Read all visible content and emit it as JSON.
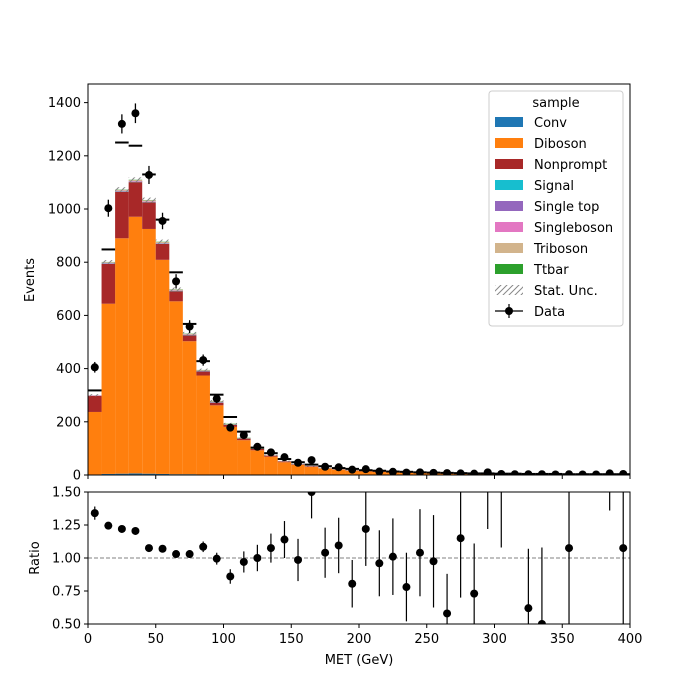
{
  "chart_data": {
    "type": "bar",
    "stacked": true,
    "x_edges": [
      0,
      10,
      20,
      30,
      40,
      50,
      60,
      70,
      80,
      90,
      100,
      110,
      120,
      130,
      140,
      150,
      160,
      170,
      180,
      190,
      200,
      210,
      220,
      230,
      240,
      250,
      260,
      270,
      280,
      290,
      300,
      310,
      320,
      330,
      340,
      350,
      360,
      370,
      380,
      390,
      400
    ],
    "xlabel": "MET (GeV)",
    "xlim": [
      0,
      400
    ],
    "xticks": [
      0,
      50,
      100,
      150,
      200,
      250,
      300,
      350,
      400
    ],
    "top": {
      "ylabel": "Events",
      "ylim": [
        0,
        1470
      ],
      "yticks": [
        0,
        200,
        400,
        600,
        800,
        1000,
        1200,
        1400
      ],
      "series": [
        {
          "name": "Conv",
          "color": "#1f77b4",
          "values": [
            2,
            4,
            5,
            6,
            5,
            4,
            3,
            3,
            2,
            2,
            1,
            1,
            1,
            1,
            0,
            0,
            0,
            0,
            0,
            0,
            0,
            0,
            0,
            0,
            0,
            0,
            0,
            0,
            0,
            0,
            0,
            0,
            0,
            0,
            0,
            0,
            0,
            0,
            0,
            0
          ]
        },
        {
          "name": "Diboson",
          "color": "#ff7f0e",
          "values": [
            235,
            640,
            885,
            965,
            920,
            805,
            650,
            500,
            372,
            260,
            180,
            130,
            92,
            68,
            48,
            38,
            30,
            24,
            20,
            16,
            14,
            12,
            10,
            9,
            8,
            7,
            6,
            5,
            4,
            4,
            3,
            3,
            3,
            2,
            2,
            2,
            2,
            2,
            2,
            2
          ]
        },
        {
          "name": "Nonprompt",
          "color": "#a82828",
          "values": [
            60,
            150,
            175,
            130,
            100,
            60,
            38,
            22,
            15,
            10,
            8,
            6,
            5,
            4,
            3,
            2,
            2,
            1,
            1,
            1,
            1,
            1,
            1,
            1,
            0,
            0,
            0,
            0,
            0,
            0,
            0,
            0,
            0,
            0,
            0,
            0,
            0,
            0,
            0,
            0
          ]
        },
        {
          "name": "Signal",
          "color": "#17becf",
          "values": [
            0,
            1,
            1,
            1,
            1,
            1,
            1,
            1,
            1,
            1,
            1,
            1,
            0,
            0,
            0,
            0,
            0,
            0,
            0,
            0,
            0,
            0,
            0,
            0,
            0,
            0,
            0,
            0,
            0,
            0,
            0,
            0,
            0,
            0,
            0,
            0,
            0,
            0,
            0,
            0
          ]
        },
        {
          "name": "Single top",
          "color": "#9467bd",
          "values": [
            1,
            1,
            1,
            1,
            1,
            1,
            1,
            1,
            1,
            1,
            0,
            0,
            0,
            0,
            0,
            0,
            0,
            0,
            0,
            0,
            0,
            0,
            0,
            0,
            0,
            0,
            0,
            0,
            0,
            0,
            0,
            0,
            0,
            0,
            0,
            0,
            0,
            0,
            0,
            0
          ]
        },
        {
          "name": "Singleboson",
          "color": "#e377c2",
          "values": [
            1,
            2,
            2,
            2,
            2,
            1,
            1,
            1,
            1,
            1,
            0,
            0,
            0,
            0,
            0,
            0,
            0,
            0,
            0,
            0,
            0,
            0,
            0,
            0,
            0,
            0,
            0,
            0,
            0,
            0,
            0,
            0,
            0,
            0,
            0,
            0,
            0,
            0,
            0,
            0
          ]
        },
        {
          "name": "Triboson",
          "color": "#d2b48c",
          "values": [
            1,
            2,
            3,
            4,
            4,
            4,
            3,
            3,
            2,
            2,
            2,
            1,
            1,
            1,
            1,
            1,
            1,
            1,
            1,
            1,
            1,
            1,
            0,
            0,
            0,
            0,
            0,
            0,
            0,
            0,
            0,
            0,
            0,
            0,
            0,
            0,
            0,
            0,
            0,
            0
          ]
        },
        {
          "name": "Ttbar",
          "color": "#2ca02c",
          "values": [
            0,
            1,
            1,
            1,
            1,
            1,
            1,
            1,
            1,
            1,
            1,
            1,
            1,
            0,
            0,
            0,
            0,
            0,
            0,
            0,
            0,
            0,
            0,
            0,
            0,
            0,
            0,
            0,
            0,
            0,
            0,
            0,
            0,
            0,
            0,
            0,
            0,
            0,
            0,
            0
          ]
        }
      ],
      "stat_unc": [
        4,
        7,
        9,
        9,
        9,
        8,
        7,
        6,
        5,
        4,
        3,
        3,
        2,
        2,
        2,
        1,
        1,
        1,
        1,
        1,
        1,
        1,
        1,
        1,
        1,
        1,
        1,
        1,
        1,
        1,
        1,
        1,
        1,
        1,
        1,
        1,
        1,
        1,
        1,
        1
      ],
      "unc_label": "Stat. Unc.",
      "dashes": [
        318,
        848,
        1250,
        1238,
        1130,
        960,
        762,
        568,
        428,
        302,
        218,
        163,
        103,
        82,
        60,
        48,
        39,
        33,
        26,
        23,
        18,
        16,
        13,
        12,
        10,
        9,
        8,
        7,
        6,
        6,
        5,
        5,
        4,
        4,
        4,
        3,
        3,
        3,
        3,
        3
      ],
      "data": {
        "name": "Data",
        "values": [
          405,
          1003,
          1320,
          1360,
          1128,
          955,
          728,
          558,
          432,
          287,
          178,
          150,
          106,
          85,
          67,
          46,
          56,
          31,
          29,
          20,
          22,
          13,
          12,
          9,
          10,
          8,
          7,
          6,
          5,
          10,
          4,
          3,
          3,
          3,
          2,
          3,
          2,
          2,
          6,
          4
        ],
        "errors": [
          20,
          32,
          36,
          37,
          34,
          31,
          27,
          24,
          21,
          17,
          13,
          12,
          10,
          9,
          8,
          7,
          7,
          6,
          5,
          4,
          5,
          4,
          3,
          3,
          3,
          3,
          3,
          2,
          2,
          3,
          2,
          2,
          2,
          2,
          1,
          2,
          1,
          1,
          2,
          2
        ]
      },
      "legend_title": "sample",
      "legend_position": "top-right"
    },
    "ratio": {
      "ylabel": "Ratio",
      "ylim": [
        0.5,
        1.5
      ],
      "yticks": [
        0.5,
        0.75,
        1.0,
        1.25,
        1.5
      ],
      "ytick_labels": [
        "0.50",
        "0.75",
        "1.00",
        "1.25",
        "1.50"
      ],
      "reference_line": 1.0,
      "points": [
        {
          "x": 5,
          "y": 1.34,
          "err": 0.05
        },
        {
          "x": 15,
          "y": 1.245,
          "err": 0.02
        },
        {
          "x": 25,
          "y": 1.22,
          "err": 0.02
        },
        {
          "x": 35,
          "y": 1.205,
          "err": 0.02
        },
        {
          "x": 45,
          "y": 1.075,
          "err": 0.02
        },
        {
          "x": 55,
          "y": 1.07,
          "err": 0.02
        },
        {
          "x": 65,
          "y": 1.03,
          "err": 0.025
        },
        {
          "x": 75,
          "y": 1.03,
          "err": 0.03
        },
        {
          "x": 85,
          "y": 1.085,
          "err": 0.04
        },
        {
          "x": 95,
          "y": 0.995,
          "err": 0.045
        },
        {
          "x": 105,
          "y": 0.86,
          "err": 0.055
        },
        {
          "x": 115,
          "y": 0.97,
          "err": 0.08
        },
        {
          "x": 125,
          "y": 1.0,
          "err": 0.1
        },
        {
          "x": 135,
          "y": 1.075,
          "err": 0.11
        },
        {
          "x": 145,
          "y": 1.14,
          "err": 0.14
        },
        {
          "x": 155,
          "y": 0.985,
          "err": 0.16
        },
        {
          "x": 165,
          "y": 1.5,
          "err": 0.2
        },
        {
          "x": 175,
          "y": 1.04,
          "err": 0.19
        },
        {
          "x": 185,
          "y": 1.095,
          "err": 0.21
        },
        {
          "x": 195,
          "y": 0.805,
          "err": 0.18
        },
        {
          "x": 205,
          "y": 1.22,
          "err": 0.28
        },
        {
          "x": 215,
          "y": 0.96,
          "err": 0.25
        },
        {
          "x": 225,
          "y": 1.01,
          "err": 0.29
        },
        {
          "x": 235,
          "y": 0.78,
          "err": 0.26
        },
        {
          "x": 245,
          "y": 1.04,
          "err": 0.33
        },
        {
          "x": 255,
          "y": 0.975,
          "err": 0.35
        },
        {
          "x": 265,
          "y": 0.58,
          "err": 0.3
        },
        {
          "x": 275,
          "y": 1.15,
          "err": 0.45
        },
        {
          "x": 285,
          "y": 0.73,
          "err": 0.38
        },
        {
          "x": 295,
          "y": 1.9,
          "err": 0.68
        },
        {
          "x": 305,
          "y": 2.0,
          "err": 0.92
        },
        {
          "x": 325,
          "y": 0.62,
          "err": 0.45
        },
        {
          "x": 335,
          "y": 0.5,
          "err": 0.58
        },
        {
          "x": 355,
          "y": 1.075,
          "err": 0.75
        },
        {
          "x": 385,
          "y": 2.0,
          "err": 0.64
        },
        {
          "x": 395,
          "y": 1.075,
          "err": 0.6
        }
      ]
    }
  }
}
